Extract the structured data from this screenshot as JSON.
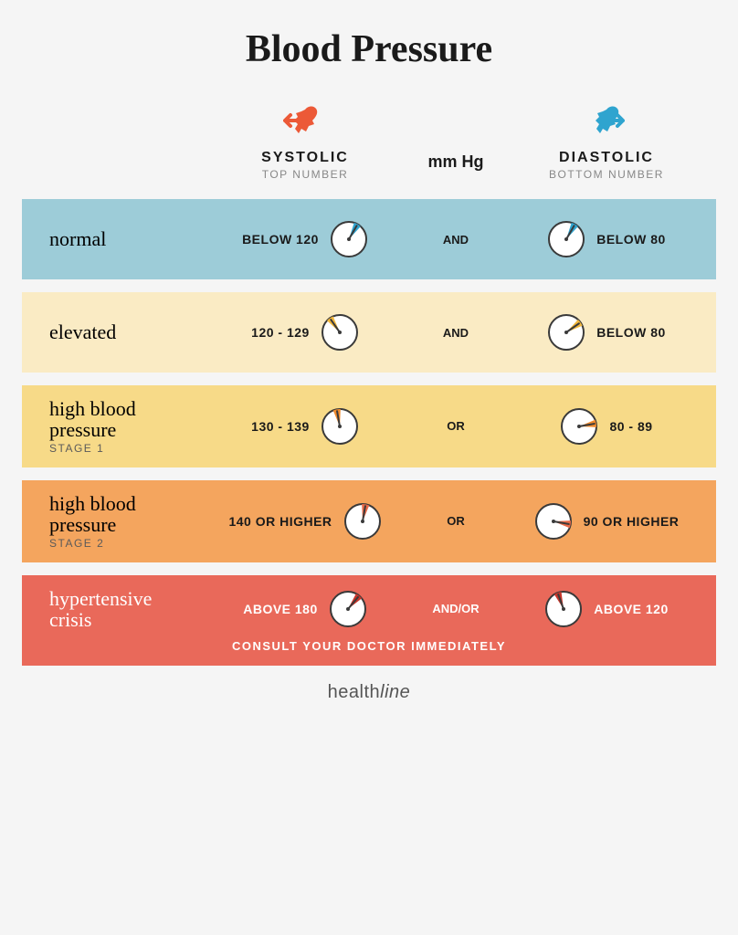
{
  "title": "Blood Pressure",
  "unit": "mm Hg",
  "header": {
    "systolic": {
      "label": "SYSTOLIC",
      "sublabel": "TOP NUMBER",
      "icon_color": "#ec5937"
    },
    "diastolic": {
      "label": "DIASTOLIC",
      "sublabel": "BOTTOM NUMBER",
      "icon_color": "#2fa4cf"
    }
  },
  "colors": {
    "gauge_face": "#ffffff",
    "gauge_border": "#3a3a3a",
    "gauge_needle": "#3a3a3a"
  },
  "rows": [
    {
      "title": "normal",
      "sublabel": "",
      "systolic": "BELOW 120",
      "diastolic": "BELOW 80",
      "conj": "AND",
      "bg": "#9dccd8",
      "text_inverted": false,
      "systolic_angle": 30,
      "systolic_fill": "#2fa4cf",
      "diastolic_angle": 30,
      "diastolic_fill": "#2fa4cf",
      "footer": ""
    },
    {
      "title": "elevated",
      "sublabel": "",
      "systolic": "120 - 129",
      "diastolic": "BELOW 80",
      "conj": "AND",
      "bg": "#faebc4",
      "text_inverted": false,
      "systolic_angle": -35,
      "systolic_fill": "#f3b83c",
      "diastolic_angle": 55,
      "diastolic_fill": "#f3b83c",
      "footer": ""
    },
    {
      "title": "high blood\npressure",
      "sublabel": "STAGE 1",
      "systolic": "130 - 139",
      "diastolic": "80 - 89",
      "conj": "OR",
      "bg": "#f7da88",
      "text_inverted": false,
      "systolic_angle": -10,
      "systolic_fill": "#f08a2c",
      "diastolic_angle": 80,
      "diastolic_fill": "#f08a2c",
      "footer": ""
    },
    {
      "title": "high blood\npressure",
      "sublabel": "STAGE 2",
      "systolic": "140 OR HIGHER",
      "diastolic": "90 OR HIGHER",
      "conj": "OR",
      "bg": "#f4a55e",
      "text_inverted": false,
      "systolic_angle": 10,
      "systolic_fill": "#e96a48",
      "diastolic_angle": 100,
      "diastolic_fill": "#e96a48",
      "footer": ""
    },
    {
      "title": "hypertensive\ncrisis",
      "sublabel": "",
      "systolic": "ABOVE 180",
      "diastolic": "ABOVE 120",
      "conj": "AND/OR",
      "bg": "#e9695a",
      "text_inverted": true,
      "systolic_angle": 40,
      "systolic_fill": "#c7352a",
      "diastolic_angle": -20,
      "diastolic_fill": "#c7352a",
      "footer": "CONSULT YOUR DOCTOR IMMEDIATELY"
    }
  ],
  "brand": "healthline"
}
